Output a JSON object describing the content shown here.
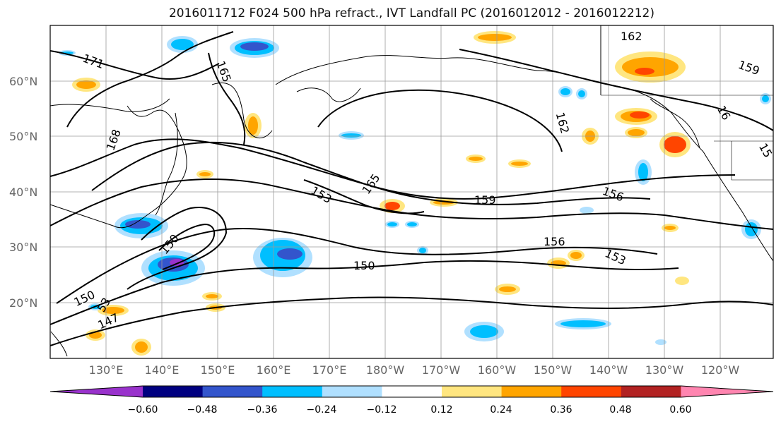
{
  "title": "2016011712 F024 500 hPa refract., IVT Landfall PC (2016012012 - 2016012212)",
  "map": {
    "lon_labels": [
      "130°E",
      "140°E",
      "150°E",
      "160°E",
      "170°E",
      "180°W",
      "170°W",
      "160°W",
      "150°W",
      "140°W",
      "130°W",
      "120°W"
    ],
    "lat_labels": [
      "60°N",
      "50°N",
      "40°N",
      "30°N",
      "20°N"
    ],
    "grid": true,
    "contour_labels": [
      "171",
      "165",
      "168",
      "162",
      "159",
      "162",
      "16",
      "15",
      "165",
      "153",
      "159",
      "156",
      "156",
      "153",
      "150",
      "150",
      "150",
      "53",
      "147"
    ]
  },
  "colorbar": {
    "ticks": [
      "−0.60",
      "−0.48",
      "−0.36",
      "−0.24",
      "−0.12",
      "0.12",
      "0.24",
      "0.36",
      "0.48",
      "0.60"
    ],
    "colors": [
      "#9932cc",
      "#000080",
      "#3355cc",
      "#00bfff",
      "#b0e0ff",
      "#ffffff",
      "#ffe680",
      "#ffa500",
      "#ff4500",
      "#b22222",
      "#ff85b0"
    ]
  }
}
